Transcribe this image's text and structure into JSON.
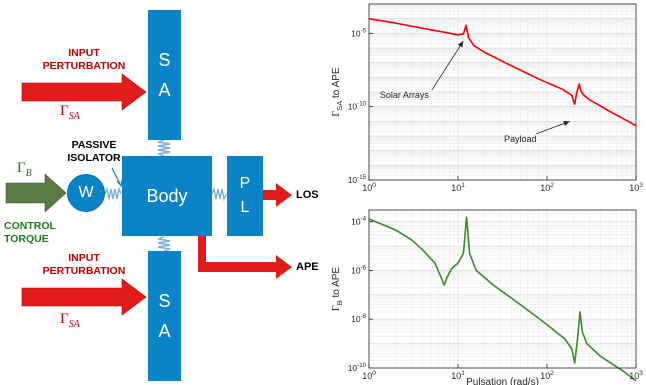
{
  "diagram": {
    "input_perturbation_top": [
      "INPUT",
      "PERTURBATION"
    ],
    "input_perturbation_bottom": [
      "INPUT",
      "PERTURBATION"
    ],
    "gamma_symbol": "Γ",
    "gamma_sa_sub": "SA",
    "gamma_b_sub": "B",
    "sa_letters": [
      "S",
      "A"
    ],
    "pl_letters": [
      "P",
      "L"
    ],
    "body_label": "Body",
    "wheel_label": "W",
    "passive_isolator": [
      "PASSIVE",
      "ISOLATOR"
    ],
    "control_torque": [
      "CONTROL",
      "TORQUE"
    ],
    "los_label": "LOS",
    "ape_label": "APE",
    "colors": {
      "box": "#0a84c6",
      "input_arrow": "#e21b1b",
      "control_arrow": "#5a7a46",
      "perturb_text": "#c00000",
      "control_text": "#1e7a1e",
      "spring": "#7fb0d8"
    }
  },
  "chart_data": [
    {
      "type": "line",
      "yscale": "log",
      "xscale": "log",
      "xlim": [
        1,
        1000
      ],
      "ylim": [
        1e-15,
        0.001
      ],
      "yticks": [
        "10^{-5}",
        "10^{-10}",
        "10^{-15}"
      ],
      "xticks": [
        "10^{0}",
        "10^{1}",
        "10^{2}",
        "10^{3}"
      ],
      "ylabel_main": "Γ",
      "ylabel_sub": "SA",
      "ylabel_rest": " to APE",
      "xlabel": "",
      "grid": true,
      "color": "#ff0000",
      "x": [
        1,
        2,
        4,
        7,
        10,
        11.5,
        12.3,
        13.2,
        15,
        20,
        40,
        80,
        150,
        190,
        205,
        215,
        230,
        240,
        260,
        300,
        500,
        1000
      ],
      "y": [
        0.0001,
        5e-05,
        2.2e-05,
        1.2e-05,
        8e-06,
        9e-06,
        3.5e-05,
        5e-06,
        1.5e-06,
        5e-07,
        6e-08,
        8e-09,
        1.5e-09,
        6e-10,
        1.5e-10,
        8e-10,
        3.5e-09,
        1.2e-09,
        6e-10,
        3e-10,
        5e-11,
        5e-12
      ],
      "annotations": [
        {
          "text": "Solar Arrays",
          "x": 2.5,
          "y": 4e-10,
          "target_x": 11.5,
          "target_y": 3e-06
        },
        {
          "text": "Payload",
          "x": 50,
          "y": 4e-13,
          "target_x": 180,
          "target_y": 1e-11
        }
      ]
    },
    {
      "type": "line",
      "yscale": "log",
      "xscale": "log",
      "xlim": [
        1,
        1000
      ],
      "ylim": [
        1e-10,
        0.0003
      ],
      "yticks": [
        "10^{-4}",
        "10^{-6}",
        "10^{-8}",
        "10^{-10}"
      ],
      "xticks": [
        "10^{0}",
        "10^{1}",
        "10^{2}",
        "10^{3}"
      ],
      "ylabel_main": "Γ",
      "ylabel_sub": "B",
      "ylabel_rest": " to APE",
      "xlabel": "Pulsation (rad/s)",
      "grid": true,
      "color": "#3a8a2a",
      "x": [
        1,
        2,
        3,
        4,
        5.5,
        6.5,
        7,
        7.5,
        8.5,
        10,
        11.5,
        12.5,
        13.5,
        16,
        25,
        50,
        100,
        160,
        190,
        205,
        220,
        235,
        250,
        280,
        400,
        700,
        1000
      ],
      "y": [
        0.00013,
        4.5e-05,
        1.8e-05,
        7e-06,
        2e-06,
        5e-07,
        2.5e-07,
        5e-07,
        1.2e-06,
        2e-06,
        5e-06,
        0.00015,
        5e-06,
        1e-06,
        2.5e-07,
        4e-08,
        6e-09,
        1.5e-09,
        6e-10,
        1.6e-10,
        1.5e-09,
        2e-08,
        3e-09,
        1e-09,
        3e-10,
        8e-11,
        3e-11
      ]
    }
  ]
}
